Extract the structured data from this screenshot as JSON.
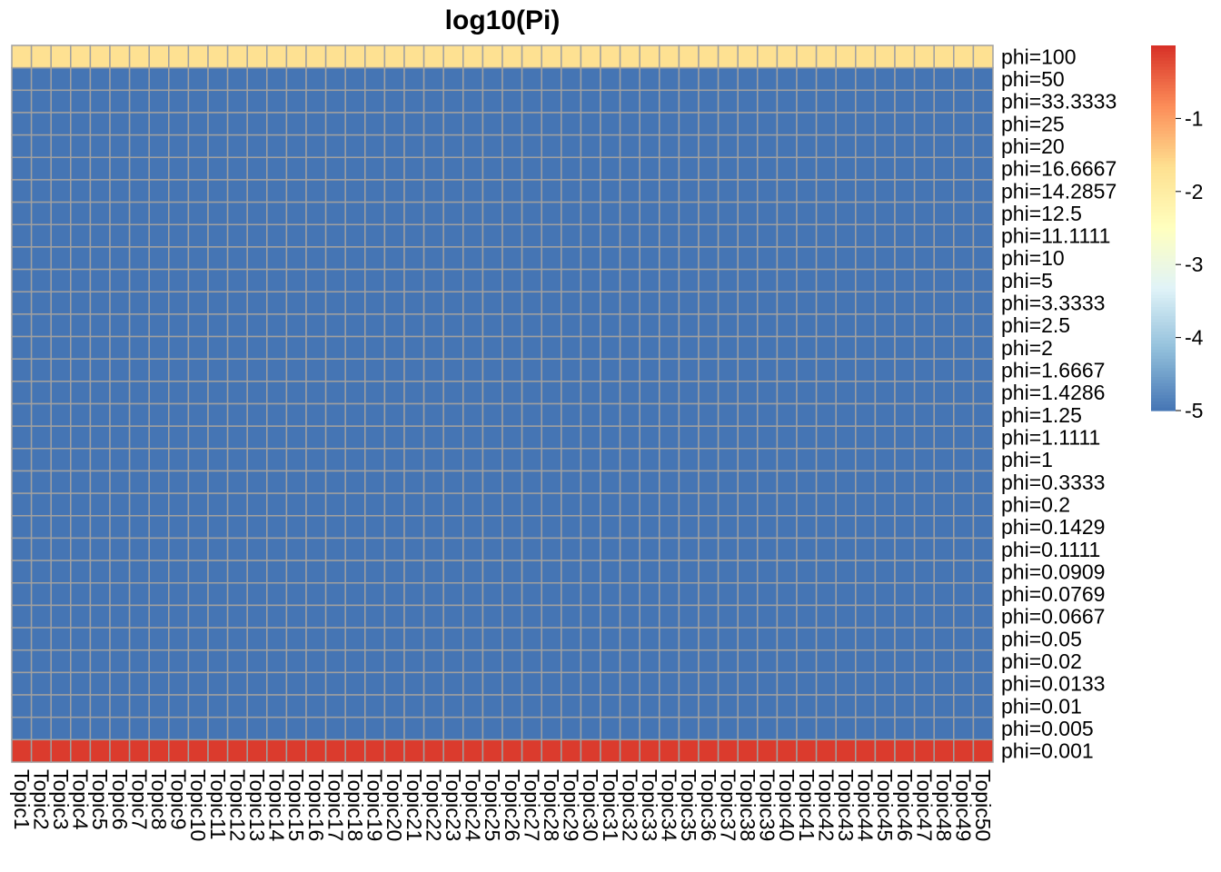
{
  "chart_data": {
    "type": "heatmap",
    "title": "log10(Pi)",
    "columns": [
      "Topic1",
      "Topic2",
      "Topic3",
      "Topic4",
      "Topic5",
      "Topic6",
      "Topic7",
      "Topic8",
      "Topic9",
      "Topic10",
      "Topic11",
      "Topic12",
      "Topic13",
      "Topic14",
      "Topic15",
      "Topic16",
      "Topic17",
      "Topic18",
      "Topic19",
      "Topic20",
      "Topic21",
      "Topic22",
      "Topic23",
      "Topic24",
      "Topic25",
      "Topic26",
      "Topic27",
      "Topic28",
      "Topic29",
      "Topic30",
      "Topic31",
      "Topic32",
      "Topic33",
      "Topic34",
      "Topic35",
      "Topic36",
      "Topic37",
      "Topic38",
      "Topic39",
      "Topic40",
      "Topic41",
      "Topic42",
      "Topic43",
      "Topic44",
      "Topic45",
      "Topic46",
      "Topic47",
      "Topic48",
      "Topic49",
      "Topic50"
    ],
    "rows": [
      "phi=100",
      "phi=50",
      "phi=33.3333",
      "phi=25",
      "phi=20",
      "phi=16.6667",
      "phi=14.2857",
      "phi=12.5",
      "phi=11.1111",
      "phi=10",
      "phi=5",
      "phi=3.3333",
      "phi=2.5",
      "phi=2",
      "phi=1.6667",
      "phi=1.4286",
      "phi=1.25",
      "phi=1.1111",
      "phi=1",
      "phi=0.3333",
      "phi=0.2",
      "phi=0.1429",
      "phi=0.1111",
      "phi=0.0909",
      "phi=0.0769",
      "phi=0.0667",
      "phi=0.05",
      "phi=0.02",
      "phi=0.0133",
      "phi=0.01",
      "phi=0.005",
      "phi=0.001"
    ],
    "row_values": [
      -1.7,
      -5,
      -5,
      -5,
      -5,
      -5,
      -5,
      -5,
      -5,
      -5,
      -5,
      -5,
      -5,
      -5,
      -5,
      -5,
      -5,
      -5,
      -5,
      -5,
      -5,
      -5,
      -5,
      -5,
      -5,
      -5,
      -5,
      -5,
      -5,
      -5,
      -5,
      -0.1
    ],
    "value_range": [
      -5,
      0
    ],
    "colorbar_ticks": [
      -1,
      -2,
      -3,
      -4,
      -5
    ],
    "colorbar_tick_labels": [
      "-1",
      "-2",
      "-3",
      "-4",
      "-5"
    ],
    "colormap": [
      "#4575b4",
      "#91bfdb",
      "#e0f3f8",
      "#ffffbf",
      "#fee090",
      "#fc8d59",
      "#d73027"
    ],
    "cell_border_color": "#a0a0a0",
    "legend_position": "right"
  }
}
